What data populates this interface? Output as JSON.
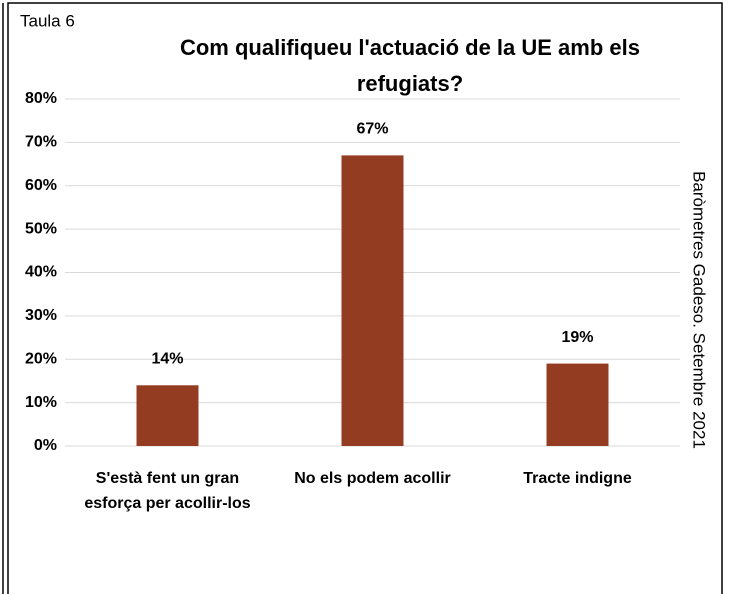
{
  "chart_data": {
    "type": "bar",
    "label": "Taula 6",
    "title": "Com qualifiqueu l'actuació de la UE amb els refugiats?",
    "source": "Baròmetres Gadeso. Setembre 2021",
    "categories": [
      "S'està fent un gran esforça per acollir-los",
      "No els podem acollir",
      "Tracte indigne"
    ],
    "values": [
      14,
      67,
      19
    ],
    "value_labels": [
      "14%",
      "67%",
      "19%"
    ],
    "color": "#943c22",
    "ylim": [
      0,
      80
    ],
    "yticks": [
      {
        "value": 0,
        "label": "0%"
      },
      {
        "value": 10,
        "label": "10%"
      },
      {
        "value": 20,
        "label": "20%"
      },
      {
        "value": 30,
        "label": "30%"
      },
      {
        "value": 40,
        "label": "40%"
      },
      {
        "value": 50,
        "label": "50%"
      },
      {
        "value": 60,
        "label": "60%"
      },
      {
        "value": 70,
        "label": "70%"
      },
      {
        "value": 80,
        "label": "80%"
      }
    ],
    "grid": true
  }
}
